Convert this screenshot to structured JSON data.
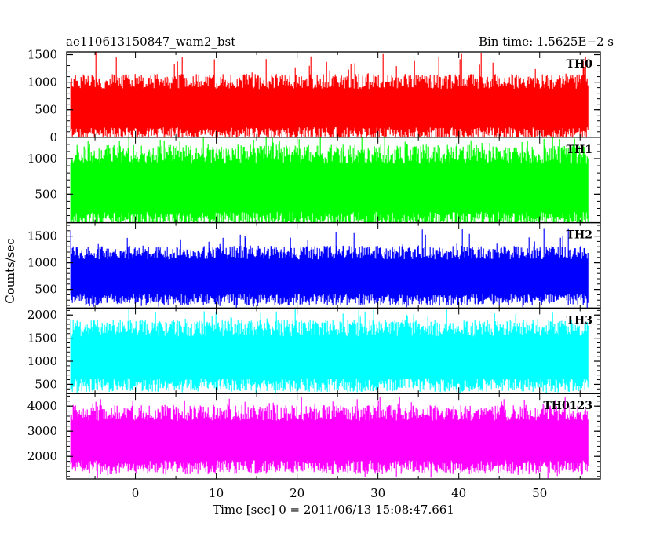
{
  "chart_data": {
    "type": "line",
    "title": "ae110613150847_wam2_bst",
    "subtitle": "Bin time: 1.5625E−2 s",
    "xlabel": "Time [sec] 0 = 2011/06/13 15:08:47.661",
    "ylabel": "Counts/sec",
    "xlim": [
      -8.5,
      57.5
    ],
    "x_ticks": [
      0,
      10,
      20,
      30,
      40,
      50
    ],
    "x_tick_labels": [
      "0",
      "10",
      "20",
      "30",
      "40",
      "50"
    ],
    "x_range": [
      -8,
      56
    ],
    "bin_time": 0.015625,
    "grid": false,
    "panels": [
      {
        "name": "TH0",
        "color": "#ff0000",
        "ylim": [
          0,
          1550
        ],
        "y_ticks": [
          0,
          500,
          1000,
          1500
        ],
        "y_tick_labels": [
          "0",
          "500",
          "1000",
          "1500"
        ],
        "signal": {
          "low": 80,
          "high": 1000,
          "min": 0,
          "max": 1550
        }
      },
      {
        "name": "TH1",
        "color": "#00ff00",
        "ylim": [
          100,
          1300
        ],
        "y_ticks": [
          500,
          1000
        ],
        "y_tick_labels": [
          "500",
          "1000"
        ],
        "signal": {
          "low": 150,
          "high": 1050,
          "min": 100,
          "max": 1300
        }
      },
      {
        "name": "TH2",
        "color": "#0000ff",
        "ylim": [
          150,
          1750
        ],
        "y_ticks": [
          500,
          1000,
          1500
        ],
        "y_tick_labels": [
          "500",
          "1000",
          "1500"
        ],
        "signal": {
          "low": 320,
          "high": 1180,
          "min": 150,
          "max": 1650
        }
      },
      {
        "name": "TH3",
        "color": "#00ffff",
        "ylim": [
          300,
          2150
        ],
        "y_ticks": [
          500,
          1000,
          1500,
          2000
        ],
        "y_tick_labels": [
          "500",
          "1000",
          "1500",
          "2000"
        ],
        "signal": {
          "low": 500,
          "high": 1700,
          "min": 300,
          "max": 2150
        }
      },
      {
        "name": "TH0123",
        "color": "#ff00ff",
        "ylim": [
          1100,
          4500
        ],
        "y_ticks": [
          2000,
          3000,
          4000
        ],
        "y_tick_labels": [
          "2000",
          "3000",
          "4000"
        ],
        "signal": {
          "low": 1600,
          "high": 3700,
          "min": 1100,
          "max": 4400
        }
      }
    ]
  }
}
